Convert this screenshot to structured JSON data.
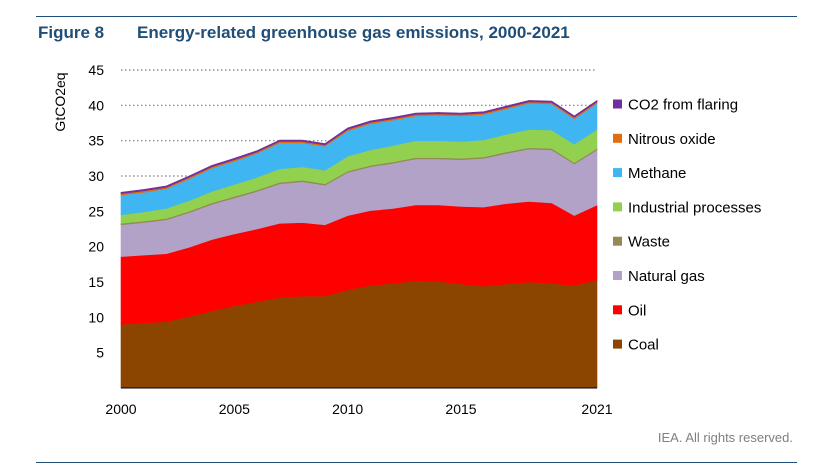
{
  "header": {
    "figure_label": "Figure 8",
    "title": "Energy-related greenhouse gas emissions, 2000-2021"
  },
  "footer": {
    "credit": "IEA. All rights reserved."
  },
  "chart_data": {
    "type": "area",
    "stacked": true,
    "title": "Energy-related greenhouse gas emissions, 2000-2021",
    "xlabel": "",
    "ylabel": "GtCO2eq",
    "ylim": [
      0,
      45
    ],
    "xlim": [
      2000,
      2021
    ],
    "yticks": [
      5,
      10,
      15,
      20,
      25,
      30,
      35,
      40,
      45
    ],
    "xticks": [
      2000,
      2005,
      2010,
      2015,
      2021
    ],
    "grid": "y-dotted",
    "legend_position": "right",
    "x": [
      2000,
      2001,
      2002,
      2003,
      2004,
      2005,
      2006,
      2007,
      2008,
      2009,
      2010,
      2011,
      2012,
      2013,
      2014,
      2015,
      2016,
      2017,
      2018,
      2019,
      2020,
      2021
    ],
    "series": [
      {
        "name": "Coal",
        "color": "#8b4500",
        "values": [
          9.0,
          9.2,
          9.4,
          10.1,
          10.9,
          11.6,
          12.2,
          12.8,
          13.0,
          13.0,
          13.9,
          14.5,
          14.8,
          15.2,
          15.1,
          14.7,
          14.4,
          14.7,
          15.0,
          14.8,
          14.5,
          15.3
        ]
      },
      {
        "name": "Oil",
        "color": "#ff0000",
        "values": [
          9.6,
          9.6,
          9.6,
          9.8,
          10.1,
          10.2,
          10.3,
          10.5,
          10.4,
          10.1,
          10.5,
          10.6,
          10.6,
          10.7,
          10.8,
          11.0,
          11.2,
          11.4,
          11.4,
          11.4,
          9.9,
          10.6
        ]
      },
      {
        "name": "Natural gas",
        "color": "#b3a2c7",
        "values": [
          4.5,
          4.6,
          4.8,
          4.9,
          5.0,
          5.1,
          5.3,
          5.6,
          5.8,
          5.6,
          6.1,
          6.2,
          6.4,
          6.5,
          6.5,
          6.6,
          6.9,
          7.1,
          7.4,
          7.5,
          7.3,
          7.8
        ]
      },
      {
        "name": "Waste",
        "color": "#948a54",
        "values": [
          0.2,
          0.2,
          0.2,
          0.2,
          0.2,
          0.2,
          0.2,
          0.2,
          0.2,
          0.2,
          0.2,
          0.2,
          0.2,
          0.2,
          0.2,
          0.2,
          0.2,
          0.2,
          0.2,
          0.2,
          0.2,
          0.2
        ]
      },
      {
        "name": "Industrial processes",
        "color": "#92d050",
        "values": [
          1.2,
          1.3,
          1.4,
          1.5,
          1.6,
          1.7,
          1.8,
          1.9,
          1.9,
          1.9,
          2.1,
          2.2,
          2.3,
          2.4,
          2.4,
          2.4,
          2.4,
          2.5,
          2.6,
          2.6,
          2.6,
          2.7
        ]
      },
      {
        "name": "Methane",
        "color": "#3fb6f2",
        "values": [
          2.8,
          2.8,
          2.8,
          3.1,
          3.3,
          3.3,
          3.4,
          3.7,
          3.4,
          3.4,
          3.6,
          3.7,
          3.6,
          3.5,
          3.6,
          3.6,
          3.6,
          3.6,
          3.7,
          3.7,
          3.6,
          3.7
        ]
      },
      {
        "name": "Nitrous oxide",
        "color": "#e46c0a",
        "values": [
          0.2,
          0.2,
          0.2,
          0.2,
          0.2,
          0.2,
          0.2,
          0.2,
          0.2,
          0.2,
          0.2,
          0.2,
          0.2,
          0.2,
          0.2,
          0.2,
          0.2,
          0.2,
          0.2,
          0.2,
          0.2,
          0.2
        ]
      },
      {
        "name": "CO2 from flaring",
        "color": "#7030a0",
        "values": [
          0.2,
          0.2,
          0.2,
          0.2,
          0.2,
          0.2,
          0.2,
          0.2,
          0.2,
          0.2,
          0.2,
          0.2,
          0.2,
          0.2,
          0.2,
          0.2,
          0.2,
          0.2,
          0.2,
          0.2,
          0.2,
          0.2
        ]
      }
    ],
    "legend_order": [
      "CO2 from flaring",
      "Nitrous oxide",
      "Methane",
      "Industrial processes",
      "Waste",
      "Natural gas",
      "Oil",
      "Coal"
    ]
  }
}
